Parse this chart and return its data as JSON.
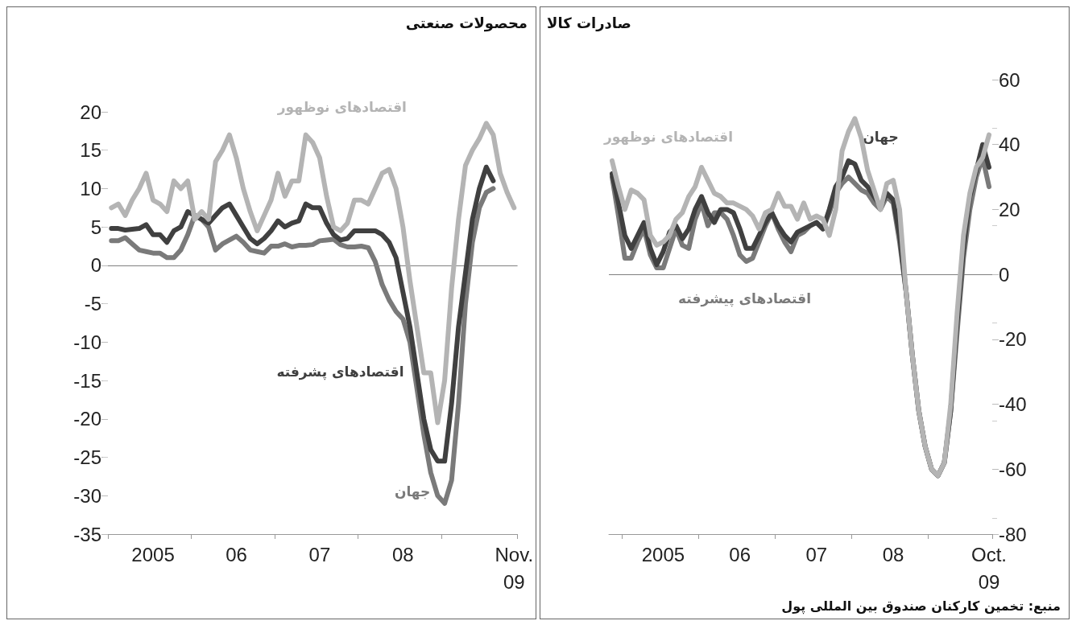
{
  "chart_data": [
    {
      "type": "line",
      "title": "محصولات صنعتی",
      "categories": [
        null,
        null,
        null,
        null,
        null,
        null,
        "2005",
        null,
        null,
        null,
        null,
        null,
        null,
        null,
        null,
        null,
        null,
        null,
        "06",
        null,
        null,
        null,
        null,
        null,
        null,
        null,
        null,
        null,
        null,
        null,
        "07",
        null,
        null,
        null,
        null,
        null,
        null,
        null,
        null,
        null,
        null,
        null,
        "08",
        null,
        null,
        null,
        null,
        null,
        null,
        null,
        null,
        null,
        null,
        null,
        null,
        null,
        null,
        null,
        "Nov.\n09"
      ],
      "series": [
        {
          "name": "اقتصادهای نوظهور",
          "color": "#b4b4b4",
          "values": [
            7.5,
            8,
            6.5,
            8.5,
            10,
            12,
            8.5,
            8,
            7,
            11,
            10,
            11,
            6,
            7,
            6,
            13.5,
            15,
            17,
            14,
            10,
            7,
            4.5,
            6.5,
            8.5,
            12,
            9,
            11,
            11,
            17,
            16,
            14,
            9,
            5,
            4.5,
            5.5,
            8.5,
            8.5,
            8,
            10,
            12,
            12.5,
            10,
            5,
            -2,
            -8,
            -14,
            -14,
            -20.5,
            -15,
            -3,
            6,
            13,
            15,
            16.5,
            18.5,
            17,
            12,
            9.5,
            7.5
          ]
        },
        {
          "name": "اقتصادهای پشرفته",
          "color": "#404040",
          "values": [
            4.8,
            4.8,
            4.6,
            4.7,
            4.8,
            5.3,
            4,
            4,
            3,
            4.5,
            5,
            7,
            6.5,
            6,
            5.5,
            6.5,
            7.5,
            8,
            6.5,
            5,
            3.5,
            2.8,
            3.5,
            4.5,
            5.8,
            5,
            5.5,
            5.8,
            8,
            7.5,
            7.5,
            5.5,
            4,
            3.3,
            3.5,
            4.5,
            4.5,
            4.5,
            4.5,
            4,
            3,
            1,
            -3.5,
            -8,
            -14,
            -20,
            -24,
            -25.5,
            -25.5,
            -18,
            -8,
            -1,
            6,
            10,
            12.8,
            11,
            null,
            null,
            null
          ]
        },
        {
          "name": "جهان",
          "color": "#7a7a7a",
          "values": [
            3.2,
            3.2,
            3.6,
            2.8,
            2,
            1.8,
            1.6,
            1.6,
            1,
            1,
            2,
            4,
            6.5,
            6,
            5,
            2,
            2.8,
            3.3,
            3.8,
            3,
            2,
            1.8,
            1.6,
            2.5,
            2.5,
            2.8,
            2.4,
            2.6,
            2.6,
            2.7,
            3.2,
            3.3,
            3.4,
            2.7,
            2.4,
            2.4,
            2.5,
            2.3,
            0.5,
            -2.5,
            -4.5,
            -6,
            -7,
            -10,
            -16,
            -22,
            -27,
            -30,
            -31,
            -28,
            -18,
            -5,
            3,
            7.5,
            9.5,
            10,
            null,
            null,
            null
          ]
        }
      ],
      "ylim": [
        -35,
        20
      ],
      "yticks": [
        -35,
        -30,
        -25,
        -20,
        -15,
        -10,
        -5,
        0,
        5,
        10,
        15,
        20
      ],
      "ref_lines": [
        {
          "axis": "y",
          "value": 0,
          "color": "#808080"
        }
      ],
      "grid": false,
      "legend": false,
      "marker": "none",
      "line_style": "solid"
    },
    {
      "type": "line",
      "title": "صادرات کالا",
      "categories": [
        null,
        null,
        null,
        null,
        null,
        null,
        null,
        null,
        "2005",
        null,
        null,
        null,
        null,
        null,
        null,
        null,
        null,
        null,
        null,
        null,
        "06",
        null,
        null,
        null,
        null,
        null,
        null,
        null,
        null,
        null,
        null,
        null,
        "07",
        null,
        null,
        null,
        null,
        null,
        null,
        null,
        null,
        null,
        null,
        null,
        "08",
        null,
        null,
        null,
        null,
        null,
        null,
        null,
        null,
        null,
        null,
        null,
        null,
        null,
        null,
        "Oct.\n09"
      ],
      "series": [
        {
          "name": "اقتصادهای نوظهور",
          "color": "#b4b4b4",
          "axis": "y2",
          "values": [
            35,
            27,
            20,
            26,
            25,
            23,
            12,
            9,
            10,
            12,
            17,
            19,
            24,
            27,
            33,
            29,
            25,
            24,
            22,
            22,
            21,
            20,
            18,
            14,
            19,
            20,
            25,
            21,
            21,
            17,
            22,
            17,
            18,
            17,
            12,
            20,
            38,
            44,
            48,
            42,
            32,
            26,
            20,
            28,
            29,
            20,
            -5,
            -25,
            -42,
            -53,
            -60,
            -62,
            -58,
            -40,
            -12,
            12,
            25,
            33,
            36,
            43
          ]
        },
        {
          "name": "جهان",
          "color": "#404040",
          "axis": "y2",
          "values": [
            31,
            22,
            12,
            8,
            12,
            16,
            8,
            3,
            7,
            13,
            15,
            11,
            14,
            20,
            24,
            19,
            16,
            20,
            20,
            19,
            14,
            8,
            8,
            12,
            16,
            19,
            15,
            12,
            10,
            13,
            14,
            15,
            16,
            14,
            20,
            27,
            30,
            35,
            34,
            29,
            27,
            24,
            21,
            25,
            23,
            12,
            -5,
            -25,
            -42,
            -53,
            -60,
            -62,
            -58,
            -42,
            -15,
            8,
            24,
            32,
            40,
            33
          ]
        },
        {
          "name": "اقتصادهای پیشرفته",
          "color": "#7a7a7a",
          "axis": "y2",
          "values": [
            30,
            18,
            5,
            5,
            10,
            14,
            6,
            2,
            2,
            8,
            14,
            9,
            8,
            17,
            22,
            15,
            19,
            19,
            17,
            12,
            6,
            4,
            5,
            10,
            15,
            19,
            14,
            10,
            7,
            12,
            13,
            15,
            16,
            14,
            19,
            25,
            28,
            30,
            28,
            26,
            25,
            22,
            20,
            24,
            22,
            10,
            -5,
            -25,
            -42,
            -53,
            -60,
            -62,
            -58,
            -42,
            -18,
            5,
            20,
            30,
            36,
            27
          ]
        }
      ],
      "y2lim": [
        -80,
        60
      ],
      "y2ticks": [
        -80,
        -60,
        -40,
        -20,
        0,
        20,
        40,
        60
      ],
      "ref_lines": [
        {
          "axis": "y2",
          "value": 0,
          "color": "#808080"
        }
      ],
      "grid": false,
      "legend": false,
      "marker": "none",
      "line_style": "solid",
      "annotations": [
        "منبع: تخمین کارکنان صندوق بین المللی پول"
      ]
    }
  ]
}
